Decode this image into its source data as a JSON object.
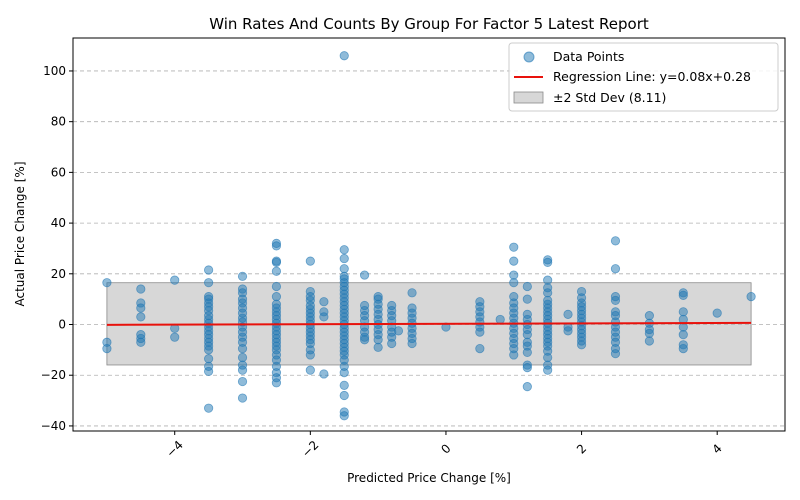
{
  "chart_data": {
    "type": "scatter",
    "title": "Win Rates And Counts By Group For Factor 5 Latest Report",
    "xlabel": "Predicted Price Change [%]",
    "ylabel": "Actual Price Change [%]",
    "xlim": [
      -5.5,
      5.0
    ],
    "ylim": [
      -42,
      113
    ],
    "xticks": [
      -4,
      -2,
      0,
      2,
      4
    ],
    "xtick_labels": [
      "−4",
      "−2",
      "0",
      "2",
      "4"
    ],
    "yticks": [
      -40,
      -20,
      0,
      20,
      40,
      60,
      80,
      100
    ],
    "ytick_labels": [
      "−40",
      "−20",
      "0",
      "20",
      "40",
      "60",
      "80",
      "100"
    ],
    "grid": "y-dashed",
    "legend_position": "top-right",
    "colors": {
      "points": "#1f77b4",
      "regression": "#e8120c",
      "band": "#b0b0b0"
    },
    "regression": {
      "slope": 0.08,
      "intercept": 0.28,
      "x_range": [
        -5.0,
        4.5
      ]
    },
    "std_band": {
      "sigma": 8.11,
      "k": 2
    },
    "series": [
      {
        "name": "Data Points",
        "points": [
          [
            -5.0,
            16.5
          ],
          [
            -5.0,
            -7.0
          ],
          [
            -5.0,
            -9.5
          ],
          [
            -4.5,
            14.0
          ],
          [
            -4.5,
            8.5
          ],
          [
            -4.5,
            6.5
          ],
          [
            -4.5,
            3.0
          ],
          [
            -4.5,
            -4.0
          ],
          [
            -4.5,
            -5.5
          ],
          [
            -4.5,
            -7.0
          ],
          [
            -4.0,
            17.5
          ],
          [
            -4.0,
            -1.5
          ],
          [
            -4.0,
            -5.0
          ],
          [
            -3.5,
            21.5
          ],
          [
            -3.5,
            16.5
          ],
          [
            -3.5,
            11.0
          ],
          [
            -3.5,
            10.0
          ],
          [
            -3.5,
            8.5
          ],
          [
            -3.5,
            7.0
          ],
          [
            -3.5,
            5.5
          ],
          [
            -3.5,
            3.5
          ],
          [
            -3.5,
            2.0
          ],
          [
            -3.5,
            0.5
          ],
          [
            -3.5,
            -1.0
          ],
          [
            -3.5,
            -2.5
          ],
          [
            -3.5,
            -4.0
          ],
          [
            -3.5,
            -5.5
          ],
          [
            -3.5,
            -7.0
          ],
          [
            -3.5,
            -8.5
          ],
          [
            -3.5,
            -10.0
          ],
          [
            -3.5,
            -13.5
          ],
          [
            -3.5,
            -16.5
          ],
          [
            -3.5,
            -18.5
          ],
          [
            -3.5,
            -33.0
          ],
          [
            -3.0,
            19.0
          ],
          [
            -3.0,
            14.0
          ],
          [
            -3.0,
            12.5
          ],
          [
            -3.0,
            10.0
          ],
          [
            -3.0,
            8.5
          ],
          [
            -3.0,
            6.5
          ],
          [
            -3.0,
            4.5
          ],
          [
            -3.0,
            2.5
          ],
          [
            -3.0,
            1.0
          ],
          [
            -3.0,
            -1.0
          ],
          [
            -3.0,
            -3.0
          ],
          [
            -3.0,
            -5.0
          ],
          [
            -3.0,
            -7.0
          ],
          [
            -3.0,
            -9.5
          ],
          [
            -3.0,
            -13.0
          ],
          [
            -3.0,
            -16.0
          ],
          [
            -3.0,
            -18.0
          ],
          [
            -3.0,
            -22.5
          ],
          [
            -3.0,
            -29.0
          ],
          [
            -2.5,
            32.0
          ],
          [
            -2.5,
            31.0
          ],
          [
            -2.5,
            25.0
          ],
          [
            -2.5,
            24.5
          ],
          [
            -2.5,
            21.0
          ],
          [
            -2.5,
            15.0
          ],
          [
            -2.5,
            11.0
          ],
          [
            -2.5,
            8.0
          ],
          [
            -2.5,
            6.5
          ],
          [
            -2.5,
            5.0
          ],
          [
            -2.5,
            3.5
          ],
          [
            -2.5,
            2.0
          ],
          [
            -2.5,
            0.5
          ],
          [
            -2.5,
            -1.0
          ],
          [
            -2.5,
            -2.5
          ],
          [
            -2.5,
            -4.0
          ],
          [
            -2.5,
            -5.5
          ],
          [
            -2.5,
            -7.0
          ],
          [
            -2.5,
            -8.5
          ],
          [
            -2.5,
            -10.0
          ],
          [
            -2.5,
            -12.0
          ],
          [
            -2.5,
            -14.0
          ],
          [
            -2.5,
            -16.5
          ],
          [
            -2.5,
            -19.0
          ],
          [
            -2.5,
            -21.0
          ],
          [
            -2.5,
            -23.0
          ],
          [
            -2.0,
            25.0
          ],
          [
            -2.0,
            13.0
          ],
          [
            -2.0,
            11.0
          ],
          [
            -2.0,
            9.5
          ],
          [
            -2.0,
            7.5
          ],
          [
            -2.0,
            6.0
          ],
          [
            -2.0,
            4.5
          ],
          [
            -2.0,
            3.0
          ],
          [
            -2.0,
            1.5
          ],
          [
            -2.0,
            0.0
          ],
          [
            -2.0,
            -1.5
          ],
          [
            -2.0,
            -3.0
          ],
          [
            -2.0,
            -4.5
          ],
          [
            -2.0,
            -6.0
          ],
          [
            -2.0,
            -7.5
          ],
          [
            -2.0,
            -10.0
          ],
          [
            -2.0,
            -12.0
          ],
          [
            -2.0,
            -18.0
          ],
          [
            -1.8,
            9.0
          ],
          [
            -1.8,
            5.0
          ],
          [
            -1.8,
            3.0
          ],
          [
            -1.8,
            -19.5
          ],
          [
            -1.5,
            106.0
          ],
          [
            -1.5,
            29.5
          ],
          [
            -1.5,
            26.0
          ],
          [
            -1.5,
            22.0
          ],
          [
            -1.5,
            19.0
          ],
          [
            -1.5,
            18.0
          ],
          [
            -1.5,
            16.5
          ],
          [
            -1.5,
            15.0
          ],
          [
            -1.5,
            13.5
          ],
          [
            -1.5,
            12.0
          ],
          [
            -1.5,
            10.5
          ],
          [
            -1.5,
            9.0
          ],
          [
            -1.5,
            7.5
          ],
          [
            -1.5,
            6.0
          ],
          [
            -1.5,
            4.5
          ],
          [
            -1.5,
            3.0
          ],
          [
            -1.5,
            1.5
          ],
          [
            -1.5,
            0.0
          ],
          [
            -1.5,
            -1.5
          ],
          [
            -1.5,
            -3.0
          ],
          [
            -1.5,
            -4.5
          ],
          [
            -1.5,
            -6.0
          ],
          [
            -1.5,
            -7.5
          ],
          [
            -1.5,
            -9.0
          ],
          [
            -1.5,
            -10.5
          ],
          [
            -1.5,
            -12.0
          ],
          [
            -1.5,
            -14.0
          ],
          [
            -1.5,
            -16.5
          ],
          [
            -1.5,
            -19.0
          ],
          [
            -1.5,
            -24.0
          ],
          [
            -1.5,
            -28.0
          ],
          [
            -1.5,
            -34.5
          ],
          [
            -1.5,
            -36.0
          ],
          [
            -1.2,
            19.5
          ],
          [
            -1.2,
            7.5
          ],
          [
            -1.2,
            5.5
          ],
          [
            -1.2,
            3.5
          ],
          [
            -1.2,
            1.5
          ],
          [
            -1.2,
            -1.0
          ],
          [
            -1.2,
            -3.0
          ],
          [
            -1.2,
            -5.0
          ],
          [
            -1.2,
            -6.0
          ],
          [
            -1.0,
            11.0
          ],
          [
            -1.0,
            10.0
          ],
          [
            -1.0,
            8.0
          ],
          [
            -1.0,
            6.0
          ],
          [
            -1.0,
            4.0
          ],
          [
            -1.0,
            2.0
          ],
          [
            -1.0,
            0.0
          ],
          [
            -1.0,
            -2.0
          ],
          [
            -1.0,
            -4.0
          ],
          [
            -1.0,
            -6.0
          ],
          [
            -1.0,
            -9.0
          ],
          [
            -0.8,
            7.5
          ],
          [
            -0.8,
            5.5
          ],
          [
            -0.8,
            3.5
          ],
          [
            -0.8,
            1.5
          ],
          [
            -0.8,
            -1.0
          ],
          [
            -0.8,
            -3.0
          ],
          [
            -0.8,
            -5.0
          ],
          [
            -0.8,
            -7.5
          ],
          [
            -0.7,
            -2.5
          ],
          [
            -0.5,
            12.5
          ],
          [
            -0.5,
            6.5
          ],
          [
            -0.5,
            4.5
          ],
          [
            -0.5,
            2.5
          ],
          [
            -0.5,
            0.5
          ],
          [
            -0.5,
            -1.5
          ],
          [
            -0.5,
            -3.5
          ],
          [
            -0.5,
            -5.5
          ],
          [
            -0.5,
            -7.5
          ],
          [
            0.0,
            -1.0
          ],
          [
            0.5,
            9.0
          ],
          [
            0.5,
            7.0
          ],
          [
            0.5,
            5.0
          ],
          [
            0.5,
            3.0
          ],
          [
            0.5,
            1.0
          ],
          [
            0.5,
            -1.0
          ],
          [
            0.5,
            -3.0
          ],
          [
            0.5,
            -9.5
          ],
          [
            0.8,
            2.0
          ],
          [
            1.0,
            30.5
          ],
          [
            1.0,
            25.0
          ],
          [
            1.0,
            19.5
          ],
          [
            1.0,
            16.5
          ],
          [
            1.0,
            11.0
          ],
          [
            1.0,
            8.5
          ],
          [
            1.0,
            6.5
          ],
          [
            1.0,
            4.5
          ],
          [
            1.0,
            2.5
          ],
          [
            1.0,
            0.5
          ],
          [
            1.0,
            -1.5
          ],
          [
            1.0,
            -3.5
          ],
          [
            1.0,
            -5.5
          ],
          [
            1.0,
            -7.5
          ],
          [
            1.0,
            -9.5
          ],
          [
            1.0,
            -12.0
          ],
          [
            1.2,
            15.0
          ],
          [
            1.2,
            10.0
          ],
          [
            1.2,
            4.0
          ],
          [
            1.2,
            2.0
          ],
          [
            1.2,
            0.0
          ],
          [
            1.2,
            -2.0
          ],
          [
            1.2,
            -4.0
          ],
          [
            1.2,
            -7.0
          ],
          [
            1.2,
            -8.5
          ],
          [
            1.2,
            -11.0
          ],
          [
            1.2,
            -16.0
          ],
          [
            1.2,
            -17.0
          ],
          [
            1.2,
            -24.5
          ],
          [
            1.5,
            25.5
          ],
          [
            1.5,
            24.5
          ],
          [
            1.5,
            17.5
          ],
          [
            1.5,
            14.5
          ],
          [
            1.5,
            12.5
          ],
          [
            1.5,
            9.5
          ],
          [
            1.5,
            8.0
          ],
          [
            1.5,
            6.5
          ],
          [
            1.5,
            5.0
          ],
          [
            1.5,
            3.5
          ],
          [
            1.5,
            2.0
          ],
          [
            1.5,
            0.5
          ],
          [
            1.5,
            -1.0
          ],
          [
            1.5,
            -2.5
          ],
          [
            1.5,
            -4.0
          ],
          [
            1.5,
            -5.5
          ],
          [
            1.5,
            -7.0
          ],
          [
            1.5,
            -8.5
          ],
          [
            1.5,
            -10.5
          ],
          [
            1.5,
            -13.0
          ],
          [
            1.5,
            -16.0
          ],
          [
            1.5,
            -18.0
          ],
          [
            1.8,
            4.0
          ],
          [
            1.8,
            -1.0
          ],
          [
            1.8,
            -2.5
          ],
          [
            2.0,
            13.0
          ],
          [
            2.0,
            10.5
          ],
          [
            2.0,
            8.5
          ],
          [
            2.0,
            7.0
          ],
          [
            2.0,
            5.5
          ],
          [
            2.0,
            4.0
          ],
          [
            2.0,
            2.5
          ],
          [
            2.0,
            1.0
          ],
          [
            2.0,
            -0.5
          ],
          [
            2.0,
            -2.0
          ],
          [
            2.0,
            -3.5
          ],
          [
            2.0,
            -5.0
          ],
          [
            2.0,
            -6.5
          ],
          [
            2.0,
            -8.0
          ],
          [
            2.5,
            33.0
          ],
          [
            2.5,
            22.0
          ],
          [
            2.5,
            11.0
          ],
          [
            2.5,
            9.5
          ],
          [
            2.5,
            5.0
          ],
          [
            2.5,
            3.5
          ],
          [
            2.5,
            1.0
          ],
          [
            2.5,
            -1.0
          ],
          [
            2.5,
            -3.0
          ],
          [
            2.5,
            -5.0
          ],
          [
            2.5,
            -7.0
          ],
          [
            2.5,
            -9.5
          ],
          [
            2.5,
            -11.5
          ],
          [
            3.0,
            3.5
          ],
          [
            3.0,
            0.5
          ],
          [
            3.0,
            -2.0
          ],
          [
            3.0,
            -3.5
          ],
          [
            3.0,
            -6.5
          ],
          [
            3.5,
            12.5
          ],
          [
            3.5,
            11.5
          ],
          [
            3.5,
            5.0
          ],
          [
            3.5,
            2.0
          ],
          [
            3.5,
            -1.0
          ],
          [
            3.5,
            -4.0
          ],
          [
            3.5,
            -8.0
          ],
          [
            3.5,
            -9.5
          ],
          [
            4.0,
            4.5
          ],
          [
            4.5,
            11.0
          ]
        ]
      },
      {
        "name": "Regression Line: y=0.08x+0.28"
      },
      {
        "name": "±2 Std Dev (8.11)"
      }
    ]
  }
}
